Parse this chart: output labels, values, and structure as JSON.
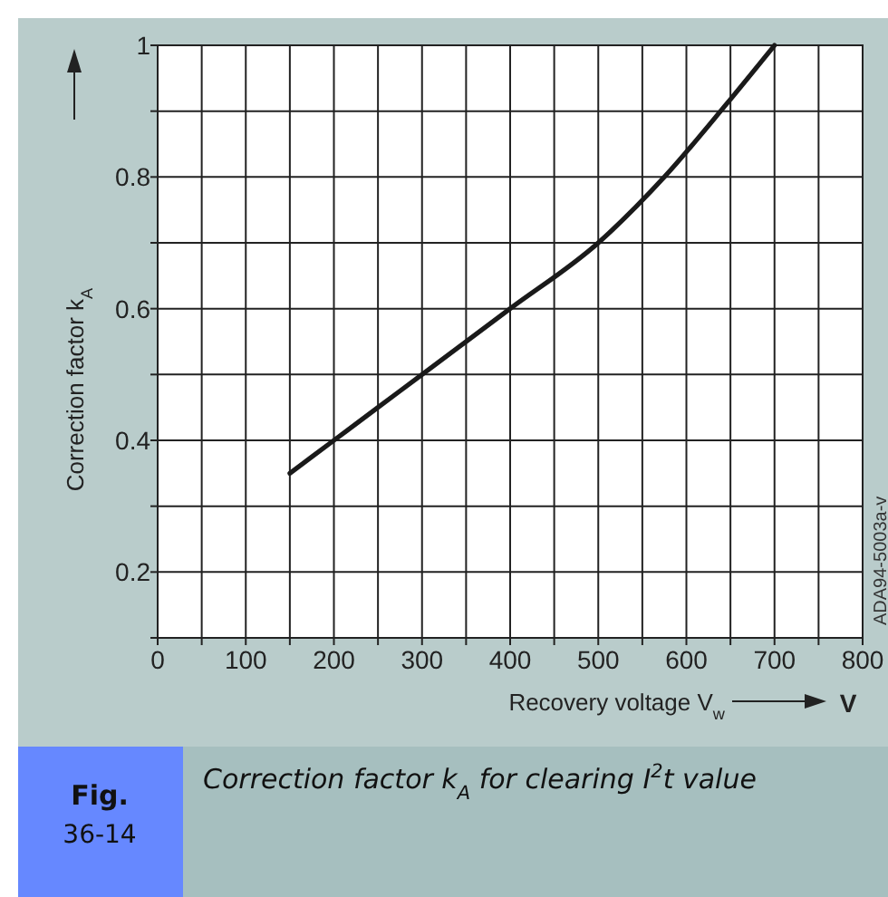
{
  "chart_data": {
    "type": "line",
    "title": "Correction factor k$_{A}$ for clearing I$^{2}$t value",
    "xlabel": "Recovery voltage V$_{w}$",
    "ylabel": "Correction factor k$_{A}$",
    "annotations": [
      "V",
      "ADA94-5003a-v",
      "Fig.",
      "36-14"
    ],
    "x": [
      150,
      200,
      250,
      300,
      400,
      500,
      575,
      645,
      700
    ],
    "series": [
      {
        "color": "#1a1a1a",
        "values": [
          0.35,
          0.4,
          0.45,
          0.5,
          0.6,
          0.7,
          0.8,
          0.91,
          1.0
        ]
      }
    ],
    "xlim": [
      0,
      800
    ],
    "xticks": [
      0,
      {
        "value": 50,
        "label": null
      },
      100,
      {
        "value": 150,
        "label": null
      },
      200,
      {
        "value": 250,
        "label": null
      },
      300,
      {
        "value": 350,
        "label": null
      },
      400,
      {
        "value": 450,
        "label": null
      },
      500,
      {
        "value": 550,
        "label": null
      },
      600,
      {
        "value": 650,
        "label": null
      },
      700,
      {
        "value": 750,
        "label": null
      },
      800
    ],
    "ylim": [
      0.1,
      1
    ],
    "yticks": [
      {
        "value": 0.1,
        "label": null
      },
      0.2,
      {
        "value": 0.3,
        "label": null
      },
      0.4,
      {
        "value": 0.5,
        "label": null
      },
      0.6,
      {
        "value": 0.7,
        "label": null
      },
      0.8,
      {
        "value": 0.9,
        "label": null
      },
      1
    ],
    "grid": true,
    "marker": "none",
    "line_style": "solid"
  }
}
